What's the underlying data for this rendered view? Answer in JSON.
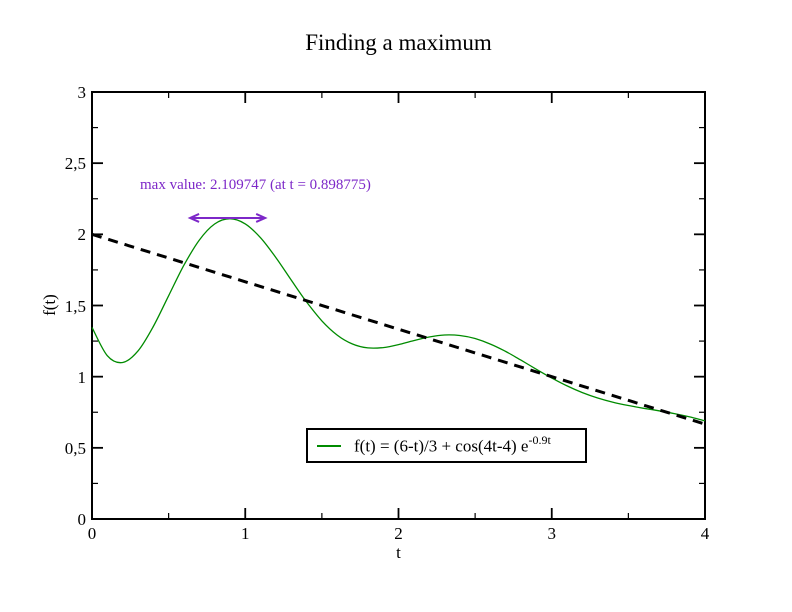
{
  "page": {
    "background": "#ffffff"
  },
  "chart_data": {
    "type": "line",
    "title": "Finding a maximum",
    "xlabel": "t",
    "ylabel": "f(t)",
    "xlim": [
      0,
      4
    ],
    "ylim": [
      0,
      3
    ],
    "grid": false,
    "frame": "closed-box-with-mirrored-inward-ticks",
    "x_major_ticks": [
      0,
      1,
      2,
      3,
      4
    ],
    "x_tick_labels": [
      "0",
      "1",
      "2",
      "3",
      "4"
    ],
    "x_minor_step": 0.5,
    "y_major_ticks": [
      0,
      0.5,
      1,
      1.5,
      2,
      2.5,
      3
    ],
    "y_tick_labels": [
      "0",
      "0,5",
      "1",
      "1,5",
      "2",
      "2,5",
      "3"
    ],
    "y_minor_step": 0.25,
    "series": [
      {
        "name": "f(t) = (6-t)/3 + cos(4t-4) e^(-0.9t)",
        "color": "#008b00",
        "style": "solid",
        "width": 1.3,
        "in_legend": true,
        "x": [
          0,
          0.1,
          0.2,
          0.3,
          0.4,
          0.5,
          0.6,
          0.7,
          0.8,
          0.9,
          1.0,
          1.1,
          1.2,
          1.3,
          1.4,
          1.5,
          1.6,
          1.7,
          1.8,
          1.9,
          2.0,
          2.1,
          2.2,
          2.3,
          2.4,
          2.5,
          2.6,
          2.7,
          2.8,
          2.9,
          3.0,
          3.1,
          3.2,
          3.3,
          3.4,
          3.5,
          3.6,
          3.7,
          3.8,
          3.9,
          4.0
        ],
        "y": [
          1.3464,
          1.1471,
          1.0995,
          1.1807,
          1.3522,
          1.568,
          1.783,
          1.9597,
          2.0725,
          2.1097,
          2.0732,
          1.9756,
          1.8366,
          1.6791,
          1.5251,
          1.3921,
          1.292,
          1.2293,
          1.2024,
          1.2045,
          1.2253,
          1.2536,
          1.2787,
          1.2925,
          1.2894,
          1.2679,
          1.229,
          1.1765,
          1.1156,
          1.0518,
          0.9902,
          0.9348,
          0.8878,
          0.85,
          0.8205,
          0.7974,
          0.7781,
          0.7599,
          0.7404,
          0.7175,
          0.6897
        ],
        "peak": {
          "t": 0.898775,
          "value": 2.109747
        }
      },
      {
        "name": "(6-t)/3",
        "color": "#000000",
        "style": "dashed",
        "width": 3,
        "in_legend": false,
        "x": [
          0,
          4
        ],
        "y": [
          2.0,
          0.6667
        ]
      }
    ],
    "annotations": {
      "max_label": "max value: 2.109747 (at t = 0.898775)",
      "color": "#7d28c8",
      "arrow": {
        "x1": 0.64,
        "x2": 1.13,
        "y": 2.115,
        "double_headed": true
      }
    },
    "legend": {
      "position": "inside-bottom-center",
      "entries": [
        {
          "label_main": "f(t) = (6-t)/3 + cos(4t-4) e",
          "label_sup": "-0.9t",
          "color": "#008b00"
        }
      ]
    }
  }
}
